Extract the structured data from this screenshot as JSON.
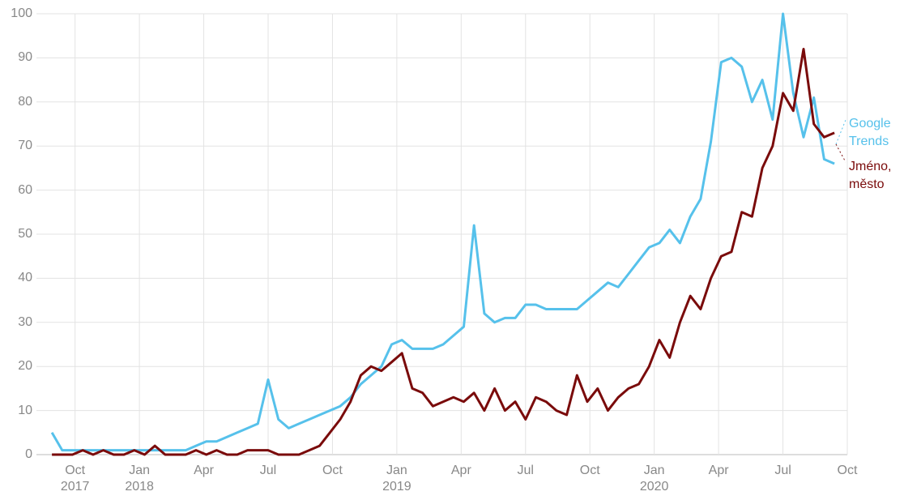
{
  "chart_data": {
    "type": "line",
    "x": [
      2017.66,
      2017.7,
      2017.74,
      2017.78,
      2017.82,
      2017.86,
      2017.9,
      2017.94,
      2017.98,
      2018.02,
      2018.06,
      2018.1,
      2018.14,
      2018.18,
      2018.22,
      2018.26,
      2018.3,
      2018.34,
      2018.38,
      2018.42,
      2018.46,
      2018.5,
      2018.54,
      2018.58,
      2018.62,
      2018.66,
      2018.7,
      2018.74,
      2018.78,
      2018.82,
      2018.86,
      2018.9,
      2018.94,
      2018.98,
      2019.02,
      2019.06,
      2019.1,
      2019.14,
      2019.18,
      2019.22,
      2019.26,
      2019.3,
      2019.34,
      2019.38,
      2019.42,
      2019.46,
      2019.5,
      2019.54,
      2019.58,
      2019.62,
      2019.66,
      2019.7,
      2019.74,
      2019.78,
      2019.82,
      2019.86,
      2019.9,
      2019.94,
      2019.98,
      2020.02,
      2020.06,
      2020.1,
      2020.14,
      2020.18,
      2020.22,
      2020.26,
      2020.3,
      2020.34,
      2020.38,
      2020.42,
      2020.46,
      2020.5,
      2020.54,
      2020.58,
      2020.62,
      2020.66,
      2020.7
    ],
    "series": [
      {
        "name": "Google Trends",
        "color": "#56c1eb",
        "values": [
          5,
          1,
          1,
          1,
          1,
          1,
          1,
          1,
          1,
          1,
          1,
          1,
          1,
          1,
          2,
          3,
          3,
          4,
          5,
          6,
          7,
          17,
          8,
          6,
          7,
          8,
          9,
          10,
          11,
          13,
          16,
          18,
          20,
          25,
          26,
          24,
          24,
          24,
          25,
          27,
          29,
          52,
          32,
          30,
          31,
          31,
          34,
          34,
          33,
          33,
          33,
          33,
          35,
          37,
          39,
          38,
          41,
          44,
          47,
          48,
          51,
          48,
          54,
          58,
          71,
          89,
          90,
          88,
          80,
          85,
          76,
          100,
          82,
          72,
          81,
          67,
          66
        ]
      },
      {
        "name": "Jméno, město",
        "color": "#7a0b0b",
        "values": [
          0,
          0,
          0,
          1,
          0,
          1,
          0,
          0,
          1,
          0,
          2,
          0,
          0,
          0,
          1,
          0,
          1,
          0,
          0,
          1,
          1,
          1,
          0,
          0,
          0,
          1,
          2,
          5,
          8,
          12,
          18,
          20,
          19,
          21,
          23,
          15,
          14,
          11,
          12,
          13,
          12,
          14,
          10,
          15,
          10,
          12,
          8,
          13,
          12,
          10,
          9,
          18,
          12,
          15,
          10,
          13,
          15,
          16,
          20,
          26,
          22,
          30,
          36,
          33,
          40,
          45,
          46,
          55,
          54,
          65,
          70,
          82,
          78,
          92,
          75,
          72,
          73
        ]
      }
    ],
    "xlim": [
      2017.6,
      2020.75
    ],
    "xticks": [
      {
        "value": 2017.75,
        "label": "Oct 2017"
      },
      {
        "value": 2018.0,
        "label": "Jan 2018"
      },
      {
        "value": 2018.25,
        "label": "Apr"
      },
      {
        "value": 2018.5,
        "label": "Jul"
      },
      {
        "value": 2018.75,
        "label": "Oct"
      },
      {
        "value": 2019.0,
        "label": "Jan 2019"
      },
      {
        "value": 2019.25,
        "label": "Apr"
      },
      {
        "value": 2019.5,
        "label": "Jul"
      },
      {
        "value": 2019.75,
        "label": "Oct"
      },
      {
        "value": 2020.0,
        "label": "Jan 2020"
      },
      {
        "value": 2020.25,
        "label": "Apr"
      },
      {
        "value": 2020.5,
        "label": "Jul"
      },
      {
        "value": 2020.75,
        "label": "Oct"
      }
    ],
    "ylim": [
      0,
      100
    ],
    "yticks": [
      0,
      10,
      20,
      30,
      40,
      50,
      60,
      70,
      80,
      90,
      100
    ],
    "grid": true
  }
}
